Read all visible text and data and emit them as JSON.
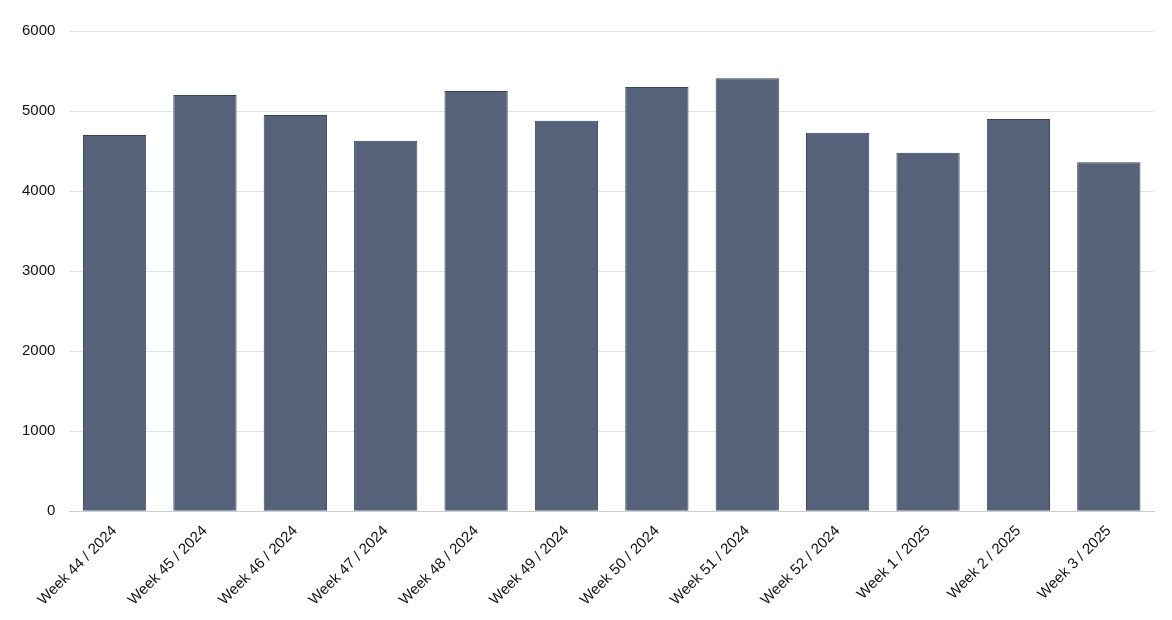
{
  "chart_data": {
    "type": "bar",
    "categories": [
      "Week 44 / 2024",
      "Week 45 / 2024",
      "Week 46 / 2024",
      "Week 47 / 2024",
      "Week 48 / 2024",
      "Week 49 / 2024",
      "Week 50 / 2024",
      "Week 51 / 2024",
      "Week 52 / 2024",
      "Week 1 / 2025",
      "Week 2 / 2025",
      "Week 3 / 2025"
    ],
    "values": [
      4700,
      5200,
      4950,
      4630,
      5250,
      4880,
      5300,
      5410,
      4730,
      4480,
      4900,
      4360
    ],
    "color": "#56627a",
    "ylim": [
      0,
      6000
    ],
    "yticks": [
      0,
      1000,
      2000,
      3000,
      4000,
      5000,
      6000
    ],
    "grid": "y",
    "legend": false
  }
}
